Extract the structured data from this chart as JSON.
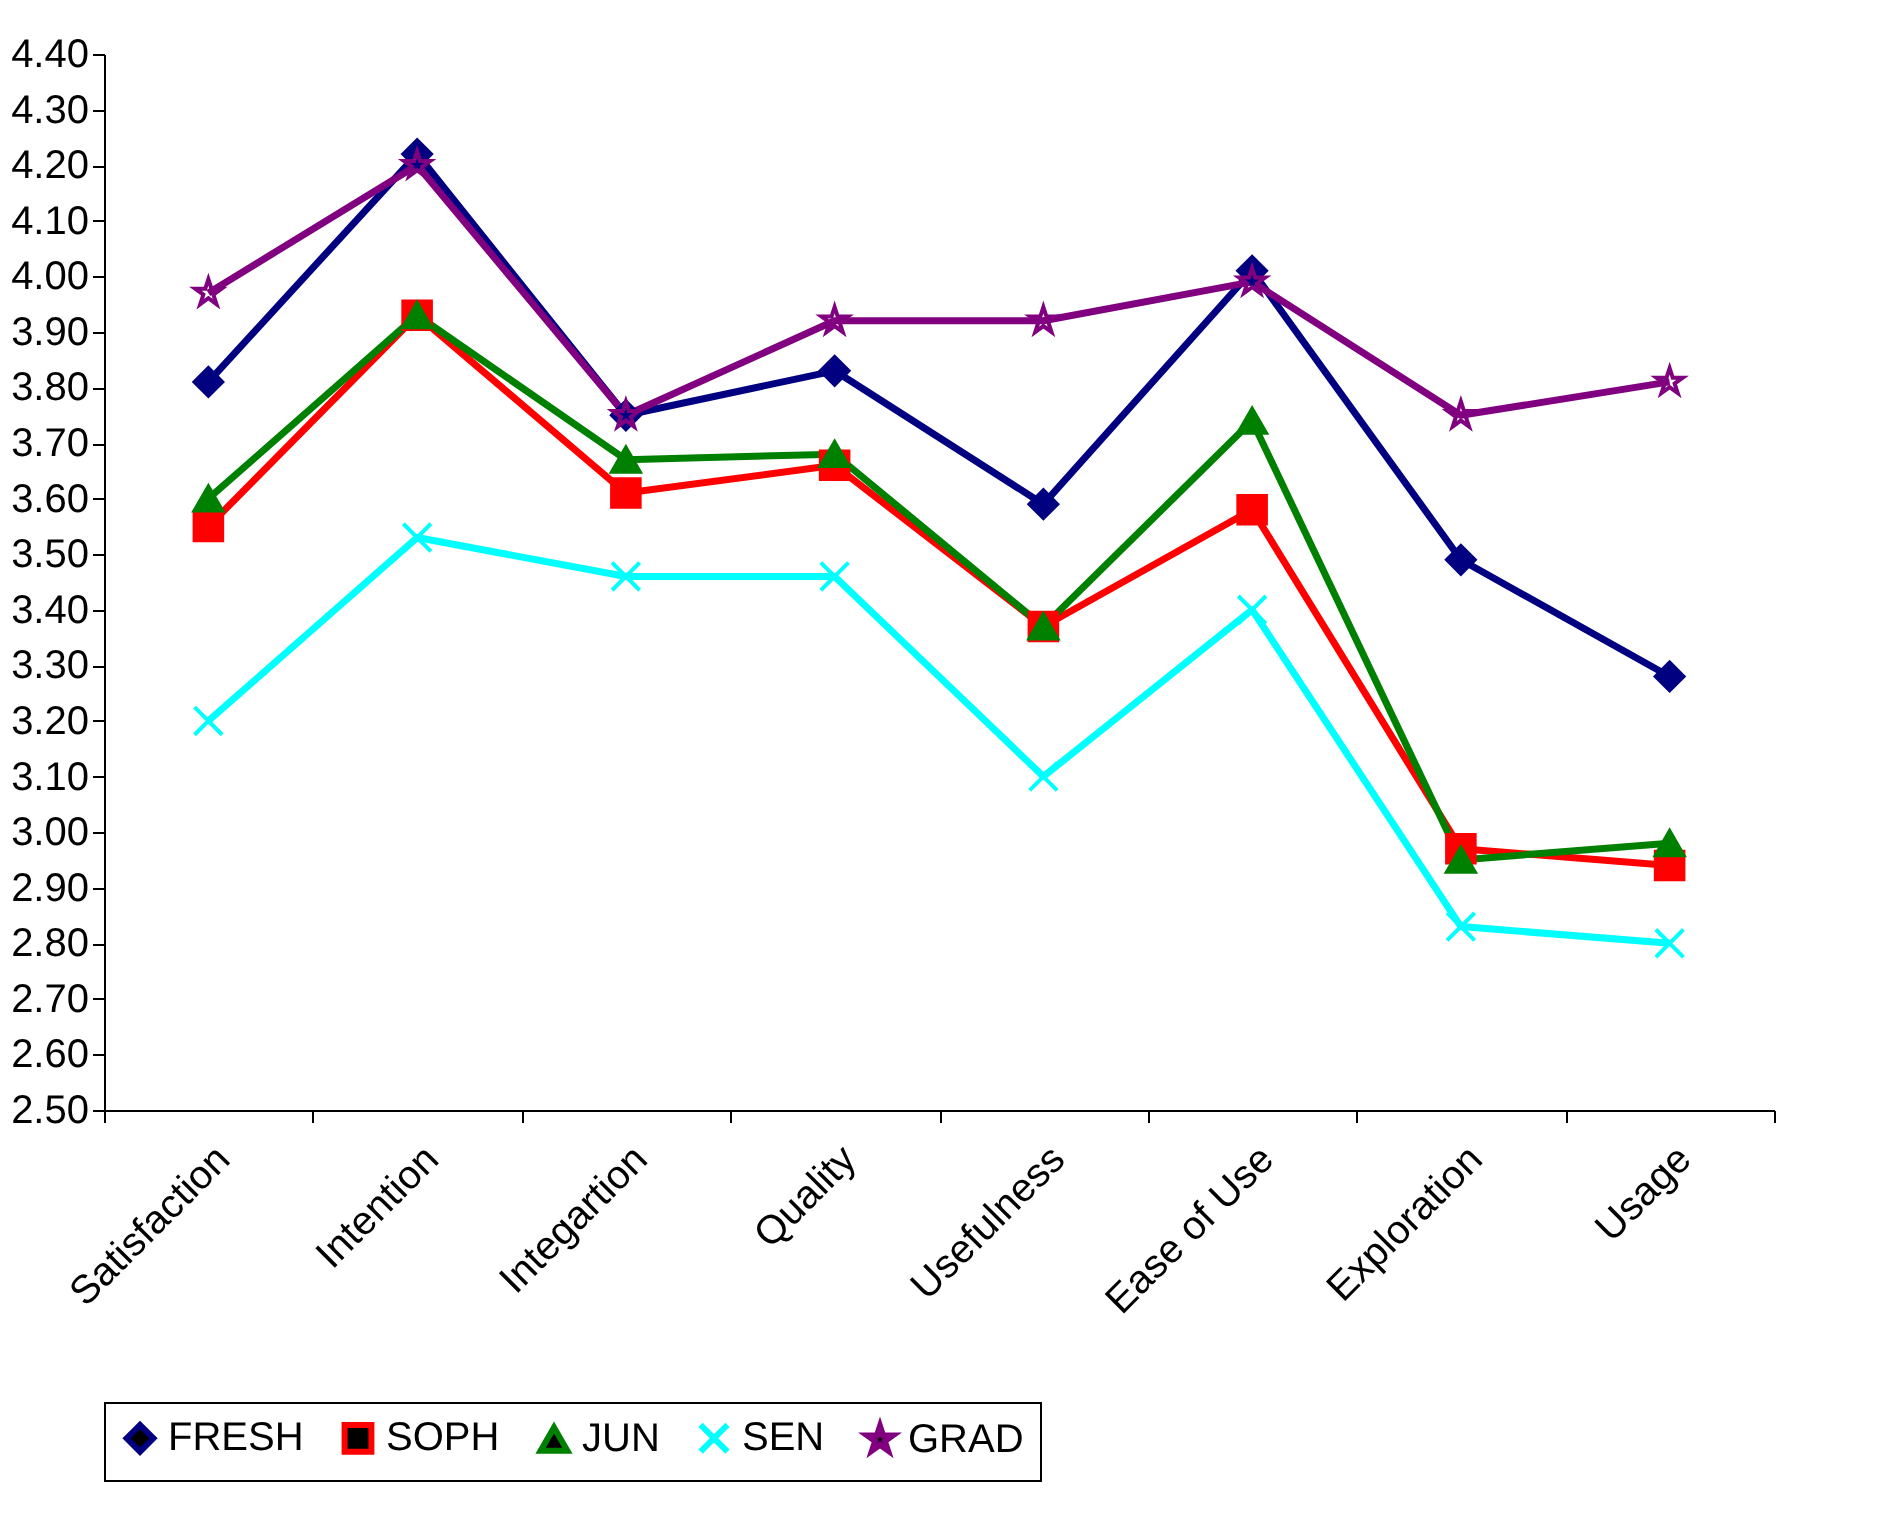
{
  "chart_data": {
    "type": "line",
    "categories": [
      "Satisfaction",
      "Intention",
      "Integartion",
      "Quality",
      "Usefulness",
      "Ease of Use",
      "Exploration",
      "Usage"
    ],
    "ylim": [
      2.5,
      4.4
    ],
    "yticks": [
      {
        "value": 2.5,
        "label": "2.50"
      },
      {
        "value": 2.6,
        "label": "2.60"
      },
      {
        "value": 2.7,
        "label": "2.70"
      },
      {
        "value": 2.8,
        "label": "2.80"
      },
      {
        "value": 2.9,
        "label": "2.90"
      },
      {
        "value": 3.0,
        "label": "3.00"
      },
      {
        "value": 3.1,
        "label": "3.10"
      },
      {
        "value": 3.2,
        "label": "3.20"
      },
      {
        "value": 3.3,
        "label": "3.30"
      },
      {
        "value": 3.4,
        "label": "3.40"
      },
      {
        "value": 3.5,
        "label": "3.50"
      },
      {
        "value": 3.6,
        "label": "3.60"
      },
      {
        "value": 3.7,
        "label": "3.70"
      },
      {
        "value": 3.8,
        "label": "3.80"
      },
      {
        "value": 3.9,
        "label": "3.90"
      },
      {
        "value": 4.0,
        "label": "4.00"
      },
      {
        "value": 4.1,
        "label": "4.10"
      },
      {
        "value": 4.2,
        "label": "4.20"
      },
      {
        "value": 4.3,
        "label": "4.30"
      },
      {
        "value": 4.4,
        "label": "4.40"
      }
    ],
    "grid": false,
    "legend": "bottom",
    "line_style": "solid",
    "series": [
      {
        "name": "FRESH",
        "color": "#000080",
        "marker": "diamond",
        "values": [
          3.81,
          4.22,
          3.75,
          3.83,
          3.59,
          4.01,
          3.49,
          3.28
        ]
      },
      {
        "name": "SOPH",
        "color": "#ff0000",
        "marker": "square",
        "values": [
          3.55,
          3.93,
          3.61,
          3.66,
          3.37,
          3.58,
          2.97,
          2.94
        ]
      },
      {
        "name": "JUN",
        "color": "#008000",
        "marker": "triangle",
        "values": [
          3.6,
          3.93,
          3.67,
          3.68,
          3.37,
          3.74,
          2.95,
          2.98
        ]
      },
      {
        "name": "SEN",
        "color": "#00ffff",
        "marker": "cross",
        "values": [
          3.2,
          3.53,
          3.46,
          3.46,
          3.1,
          3.4,
          2.83,
          2.8
        ]
      },
      {
        "name": "GRAD",
        "color": "#800080",
        "marker": "star",
        "values": [
          3.97,
          4.2,
          3.75,
          3.92,
          3.92,
          3.99,
          3.75,
          3.81
        ]
      }
    ]
  }
}
